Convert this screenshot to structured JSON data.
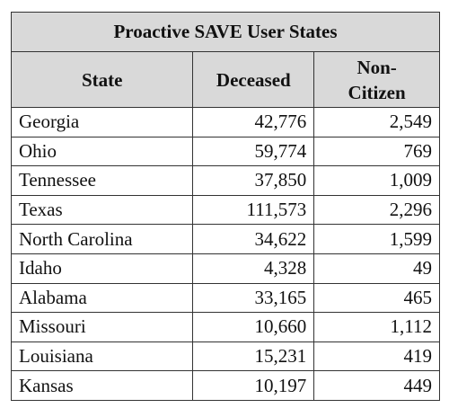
{
  "table": {
    "title": "Proactive SAVE User States",
    "columns": [
      "State",
      "Deceased",
      "Non-Citizen"
    ],
    "rows": [
      [
        "Georgia",
        "42,776",
        "2,549"
      ],
      [
        "Ohio",
        "59,774",
        "769"
      ],
      [
        "Tennessee",
        "37,850",
        "1,009"
      ],
      [
        "Texas",
        "111,573",
        "2,296"
      ],
      [
        "North Carolina",
        "34,622",
        "1,599"
      ],
      [
        "Idaho",
        "4,328",
        "49"
      ],
      [
        "Alabama",
        "33,165",
        "465"
      ],
      [
        "Missouri",
        "10,660",
        "1,112"
      ],
      [
        "Louisiana",
        "15,231",
        "419"
      ],
      [
        "Kansas",
        "10,197",
        "449"
      ]
    ]
  }
}
